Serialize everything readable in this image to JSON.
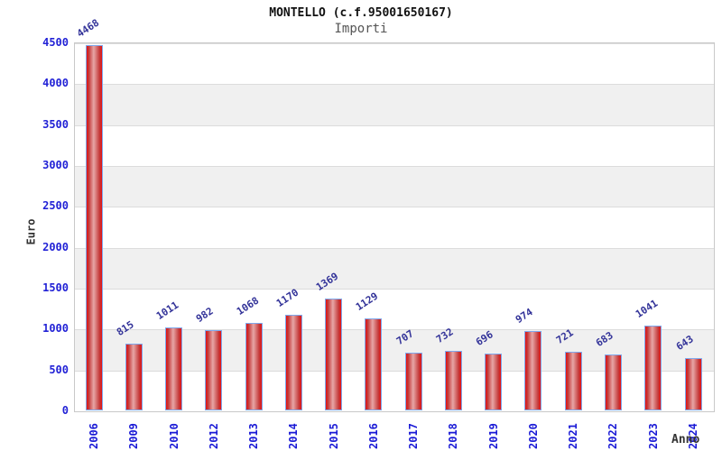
{
  "header": {
    "title": "MONTELLO (c.f.95001650167)",
    "subtitle": "Importi"
  },
  "axes": {
    "y_title": "Euro",
    "x_title": "Anno"
  },
  "chart_data": {
    "type": "bar",
    "title": "MONTELLO (c.f.95001650167)",
    "subtitle": "Importi",
    "xlabel": "Anno",
    "ylabel": "Euro",
    "categories": [
      "2006",
      "2009",
      "2010",
      "2012",
      "2013",
      "2014",
      "2015",
      "2016",
      "2017",
      "2018",
      "2019",
      "2020",
      "2021",
      "2022",
      "2023",
      "2024"
    ],
    "values": [
      4468,
      815,
      1011,
      982,
      1068,
      1170,
      1369,
      1129,
      707,
      732,
      696,
      974,
      721,
      683,
      1041,
      643
    ],
    "ylim": [
      0,
      4500
    ],
    "yticks": [
      0,
      500,
      1000,
      1500,
      2000,
      2500,
      3000,
      3500,
      4000,
      4500
    ],
    "grid": true,
    "alternating_bands": true,
    "legend": "none",
    "colors": {
      "bar_fill_edge": "#e51212",
      "bar_fill_center": "#e7a6a6",
      "bar_border": "#7fa8ec",
      "value_label": "#333399",
      "tick_label": "#2222d6",
      "band": "#f0f0f0",
      "gridline": "#dcdcdc",
      "title": "#111111",
      "subtitle": "#555555",
      "axis_title": "#333333"
    }
  }
}
